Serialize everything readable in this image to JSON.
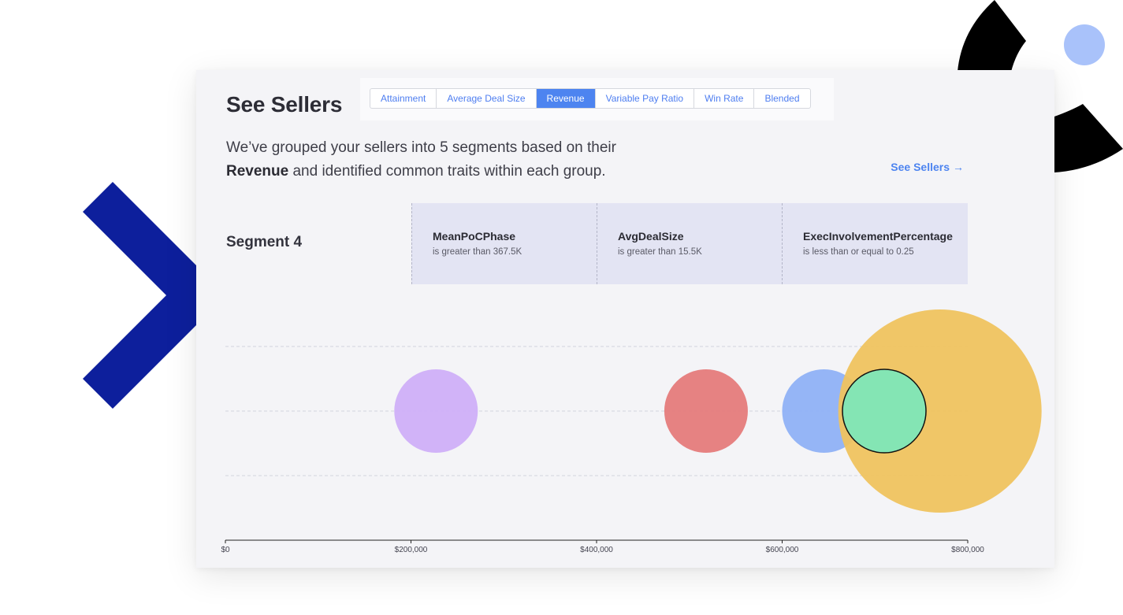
{
  "header": {
    "title": "See Sellers",
    "tabs": [
      "Attainment",
      "Average Deal Size",
      "Revenue",
      "Variable Pay Ratio",
      "Win Rate",
      "Blended"
    ],
    "active_tab": "Revenue"
  },
  "description": {
    "line1": "We’ve grouped your sellers into 5 segments based on their",
    "metric": "Revenue",
    "line2_rest": " and identified common traits within each group."
  },
  "see_sellers_link": {
    "label": "See Sellers",
    "arrow": "→"
  },
  "segment": {
    "title": "Segment 4",
    "traits": [
      {
        "name": "MeanPoCPhase",
        "condition": "is greater than 367.5K"
      },
      {
        "name": "AvgDealSize",
        "condition": "is greater than 15.5K"
      },
      {
        "name": "ExecInvolvementPercentage",
        "condition": "is less than or equal to 0.25"
      }
    ]
  },
  "colors": {
    "accent": "#4d84f0",
    "navy_chevron": "#0d1f9c",
    "decor_black": "#000000",
    "decor_dot": "#a9c2fa"
  },
  "chart_data": {
    "type": "scatter",
    "x_ticks": [
      "$0",
      "$200,000",
      "$400,000",
      "$600,000",
      "$800,000"
    ],
    "xlim": [
      0,
      800000
    ],
    "grid": true,
    "points": [
      {
        "x": 227000,
        "color": "#cfaff8",
        "radius": 53,
        "selected": false
      },
      {
        "x": 518000,
        "color": "#e57b7b",
        "radius": 53,
        "selected": false
      },
      {
        "x": 645000,
        "color": "#8fb1f6",
        "radius": 53,
        "selected": false
      },
      {
        "x": 770000,
        "color": "#efc35f",
        "radius": 129,
        "selected": false
      },
      {
        "x": 710000,
        "color": "#84e5b4",
        "radius": 53,
        "selected": true
      }
    ]
  }
}
